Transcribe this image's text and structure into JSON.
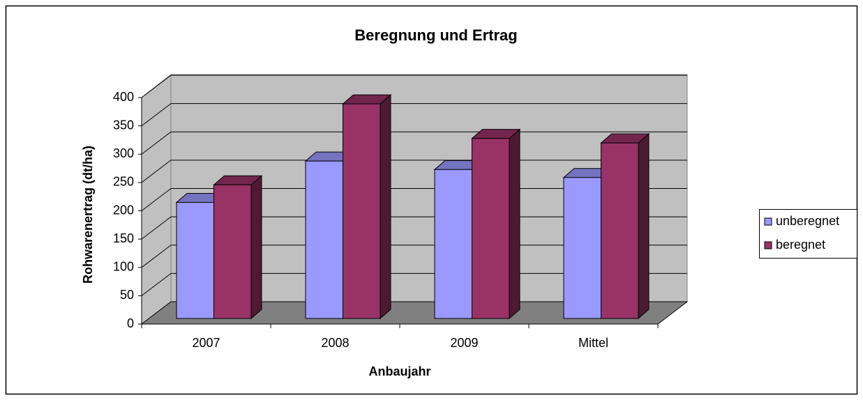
{
  "chart_data": {
    "type": "bar3d",
    "title": "Beregnung und Ertrag",
    "x_label": "Anbaujahr",
    "y_label": "Rohwarenertrag (dt/ha)",
    "categories": [
      "2007",
      "2008",
      "2009",
      "Mittel"
    ],
    "series": [
      {
        "name": "unberegnet",
        "color": "#9999ff",
        "values": [
          205,
          278,
          263,
          249
        ]
      },
      {
        "name": "beregnet",
        "color": "#993366",
        "values": [
          236,
          379,
          318,
          310
        ]
      }
    ],
    "ylim": [
      0,
      400
    ],
    "yticks": [
      0,
      50,
      100,
      150,
      200,
      250,
      300,
      350,
      400
    ],
    "grid": true,
    "legend": "right"
  }
}
